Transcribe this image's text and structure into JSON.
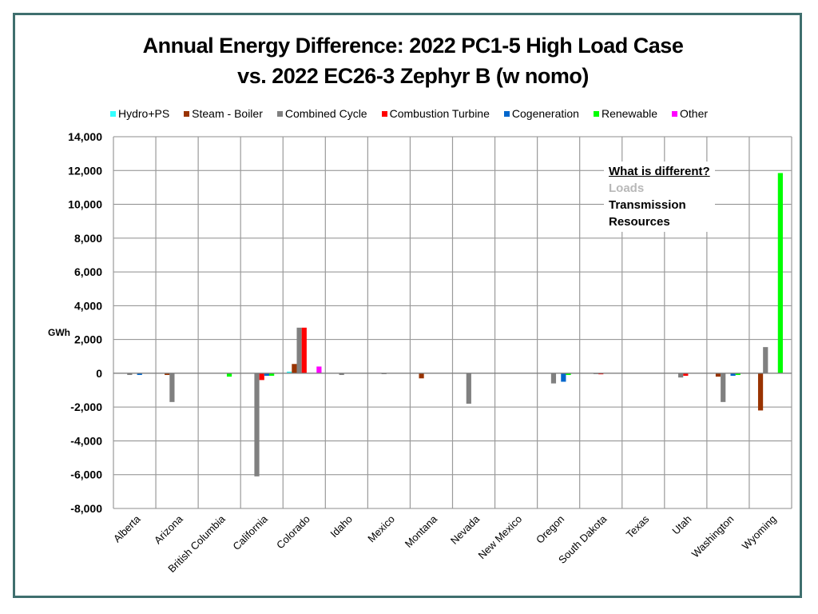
{
  "chart_data": {
    "type": "bar",
    "title": [
      "Annual Energy Difference: 2022 PC1-5 High Load Case",
      "vs. 2022 EC26-3 Zephyr B (w nomo)"
    ],
    "xlabel": "",
    "ylabel": "GWh",
    "ylim": [
      -8000,
      14000
    ],
    "yticks": [
      14000,
      12000,
      10000,
      8000,
      6000,
      4000,
      2000,
      0,
      -2000,
      -4000,
      -6000,
      -8000
    ],
    "ytick_labels": [
      "14,000",
      "12,000",
      "10,000",
      "8,000",
      "6,000",
      "4,000",
      "2,000",
      "0",
      "-2,000",
      "-4,000",
      "-6,000",
      "-8,000"
    ],
    "grid": true,
    "legend_position": "top",
    "categories": [
      "Alberta",
      "Arizona",
      "British Columbia",
      "California",
      "Colorado",
      "Idaho",
      "Mexico",
      "Montana",
      "Nevada",
      "New Mexico",
      "Oregon",
      "South Dakota",
      "Texas",
      "Utah",
      "Washington",
      "Wyoming"
    ],
    "series": [
      {
        "name": "Hydro+PS",
        "color": "#33ffff",
        "values": [
          0,
          0,
          0,
          0,
          100,
          0,
          0,
          0,
          0,
          0,
          0,
          0,
          0,
          0,
          0,
          0
        ]
      },
      {
        "name": "Steam - Boiler",
        "color": "#993300",
        "values": [
          0,
          -100,
          0,
          0,
          550,
          0,
          0,
          -300,
          0,
          0,
          0,
          0,
          0,
          0,
          -200,
          -2200
        ]
      },
      {
        "name": "Combined Cycle",
        "color": "#808080",
        "values": [
          -100,
          -1700,
          0,
          -6100,
          2700,
          -100,
          -50,
          0,
          -1800,
          0,
          -600,
          -30,
          0,
          -250,
          -1700,
          1550
        ]
      },
      {
        "name": "Combustion Turbine",
        "color": "#ff0000",
        "values": [
          0,
          0,
          0,
          -400,
          2700,
          0,
          0,
          0,
          0,
          0,
          0,
          -60,
          0,
          -150,
          0,
          0
        ]
      },
      {
        "name": "Cogeneration",
        "color": "#0066cc",
        "values": [
          -100,
          0,
          0,
          -150,
          0,
          0,
          0,
          0,
          0,
          0,
          -500,
          0,
          0,
          0,
          -150,
          0
        ]
      },
      {
        "name": "Renewable",
        "color": "#00ff00",
        "values": [
          0,
          0,
          -200,
          -150,
          0,
          0,
          0,
          0,
          0,
          0,
          -100,
          0,
          0,
          0,
          -100,
          11850
        ]
      },
      {
        "name": "Other",
        "color": "#ff00ff",
        "values": [
          0,
          0,
          0,
          0,
          400,
          0,
          0,
          0,
          0,
          0,
          0,
          0,
          0,
          0,
          0,
          0
        ]
      }
    ],
    "annotation": {
      "heading": "What is different?",
      "items": [
        {
          "text": "Loads",
          "dimmed": true
        },
        {
          "text": "Transmission",
          "dimmed": false
        },
        {
          "text": "Resources",
          "dimmed": false
        }
      ]
    }
  }
}
